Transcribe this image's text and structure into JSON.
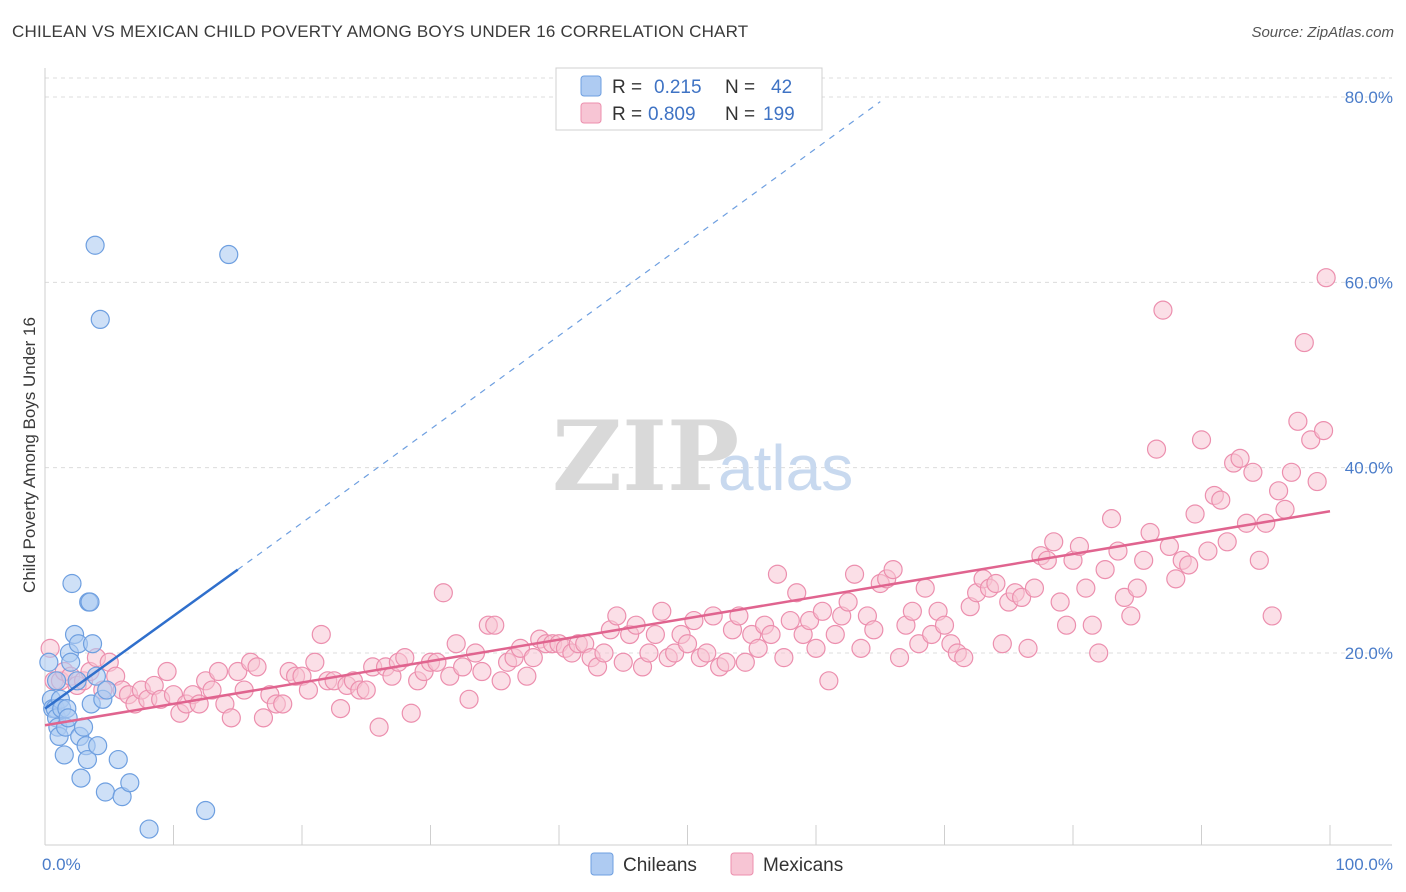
{
  "title": "CHILEAN VS MEXICAN CHILD POVERTY AMONG BOYS UNDER 16 CORRELATION CHART",
  "source": "Source: ZipAtlas.com",
  "watermark": {
    "zip": "ZIP",
    "atlas": "atlas"
  },
  "colors": {
    "chileans_fill": "#aecbf2",
    "chileans_stroke": "#6e9fe0",
    "chileans_line": "#2f6fcc",
    "mexicans_fill": "#f7c5d4",
    "mexicans_stroke": "#ec8fae",
    "mexicans_line": "#e0648f",
    "grid": "#dcdcdc",
    "tick_label": "#4a7cc9"
  },
  "legend": {
    "rows": [
      {
        "r_label": "R =",
        "r_value": "0.215",
        "n_label": "N =",
        "n_value": "42"
      },
      {
        "r_label": "R =",
        "r_value": "0.809",
        "n_label": "N =",
        "n_value": "199"
      }
    ]
  },
  "chart_data": {
    "type": "scatter",
    "title": "CHILEAN VS MEXICAN CHILD POVERTY AMONG BOYS UNDER 16 CORRELATION CHART",
    "xlabel": "",
    "ylabel": "Child Poverty Among Boys Under 16",
    "xlim": [
      0,
      100
    ],
    "ylim": [
      0,
      80
    ],
    "x_tick_labels": [
      "0.0%",
      "100.0%"
    ],
    "y_ticks": [
      20,
      40,
      60,
      80
    ],
    "y_tick_labels": [
      "20.0%",
      "40.0%",
      "60.0%",
      "80.0%"
    ],
    "grid": true,
    "legend_position": "top-center",
    "series": [
      {
        "name": "Chileans",
        "r": 0.215,
        "n": 42,
        "trend": {
          "x0": 0,
          "y0": 14.0,
          "x1": 15,
          "y1": 29.0,
          "dashed_to": {
            "x": 65,
            "y": 79.5
          }
        },
        "points": [
          [
            0.3,
            19
          ],
          [
            0.5,
            15
          ],
          [
            0.6,
            14
          ],
          [
            0.8,
            14
          ],
          [
            0.9,
            13
          ],
          [
            1.0,
            12
          ],
          [
            1.1,
            11
          ],
          [
            1.2,
            15
          ],
          [
            1.3,
            14
          ],
          [
            1.5,
            9
          ],
          [
            1.6,
            12
          ],
          [
            1.7,
            14
          ],
          [
            1.8,
            13
          ],
          [
            1.9,
            20
          ],
          [
            2.0,
            19
          ],
          [
            2.1,
            27.5
          ],
          [
            2.3,
            22
          ],
          [
            2.5,
            17
          ],
          [
            2.6,
            21
          ],
          [
            2.7,
            11
          ],
          [
            2.8,
            6.5
          ],
          [
            3.0,
            12
          ],
          [
            3.2,
            10
          ],
          [
            3.3,
            8.5
          ],
          [
            3.4,
            25.5
          ],
          [
            3.5,
            25.5
          ],
          [
            3.6,
            14.5
          ],
          [
            3.7,
            21
          ],
          [
            3.9,
            64
          ],
          [
            4.0,
            17.5
          ],
          [
            4.1,
            10
          ],
          [
            4.3,
            56
          ],
          [
            4.5,
            15
          ],
          [
            4.7,
            5
          ],
          [
            4.8,
            16
          ],
          [
            5.7,
            8.5
          ],
          [
            6.0,
            4.5
          ],
          [
            6.6,
            6
          ],
          [
            8.1,
            1
          ],
          [
            12.5,
            3
          ],
          [
            14.3,
            63
          ],
          [
            0.9,
            17
          ]
        ]
      },
      {
        "name": "Mexicans",
        "r": 0.809,
        "n": 199,
        "trend": {
          "x0": 0,
          "y0": 12.2,
          "x1": 100,
          "y1": 35.3
        },
        "points": [
          [
            0.4,
            20.5
          ],
          [
            0.7,
            17
          ],
          [
            1.2,
            17
          ],
          [
            1.5,
            18
          ],
          [
            2.0,
            17.5
          ],
          [
            2.5,
            16.5
          ],
          [
            3.0,
            17
          ],
          [
            3.5,
            18
          ],
          [
            4.0,
            19.5
          ],
          [
            4.5,
            16
          ],
          [
            5.0,
            19
          ],
          [
            5.5,
            17.5
          ],
          [
            6.0,
            16
          ],
          [
            6.5,
            15.5
          ],
          [
            7.0,
            14.5
          ],
          [
            7.5,
            16
          ],
          [
            8.0,
            15
          ],
          [
            8.5,
            16.5
          ],
          [
            9.0,
            15
          ],
          [
            9.5,
            18
          ],
          [
            10.0,
            15.5
          ],
          [
            10.5,
            13.5
          ],
          [
            11.0,
            14.5
          ],
          [
            11.5,
            15.5
          ],
          [
            12.0,
            14.5
          ],
          [
            12.5,
            17
          ],
          [
            13.0,
            16
          ],
          [
            13.5,
            18
          ],
          [
            14.0,
            14.5
          ],
          [
            14.5,
            13
          ],
          [
            15.0,
            18
          ],
          [
            15.5,
            16
          ],
          [
            16.0,
            19
          ],
          [
            16.5,
            18.5
          ],
          [
            17.0,
            13
          ],
          [
            17.5,
            15.5
          ],
          [
            18.0,
            14.5
          ],
          [
            18.5,
            14.5
          ],
          [
            19.0,
            18
          ],
          [
            19.5,
            17.5
          ],
          [
            20.0,
            17.5
          ],
          [
            20.5,
            16
          ],
          [
            21.0,
            19
          ],
          [
            21.5,
            22
          ],
          [
            22.0,
            17
          ],
          [
            22.5,
            17
          ],
          [
            23.0,
            14
          ],
          [
            23.5,
            16.5
          ],
          [
            24.0,
            17
          ],
          [
            24.5,
            16
          ],
          [
            25.0,
            16
          ],
          [
            25.5,
            18.5
          ],
          [
            26.0,
            12
          ],
          [
            26.5,
            18.5
          ],
          [
            27.0,
            17.5
          ],
          [
            27.5,
            19
          ],
          [
            28.0,
            19.5
          ],
          [
            28.5,
            13.5
          ],
          [
            29.0,
            17
          ],
          [
            29.5,
            18
          ],
          [
            30.0,
            19
          ],
          [
            30.5,
            19
          ],
          [
            31.0,
            26.5
          ],
          [
            31.5,
            17.5
          ],
          [
            32.0,
            21
          ],
          [
            32.5,
            18.5
          ],
          [
            33.0,
            15
          ],
          [
            33.5,
            20
          ],
          [
            34.0,
            18
          ],
          [
            34.5,
            23
          ],
          [
            35.0,
            23
          ],
          [
            35.5,
            17
          ],
          [
            36.0,
            19
          ],
          [
            36.5,
            19.5
          ],
          [
            37.0,
            20.5
          ],
          [
            37.5,
            17.5
          ],
          [
            38.0,
            19.5
          ],
          [
            38.5,
            21.5
          ],
          [
            39.0,
            21
          ],
          [
            39.5,
            21
          ],
          [
            40.0,
            21
          ],
          [
            40.5,
            20.5
          ],
          [
            41.0,
            20
          ],
          [
            41.5,
            21
          ],
          [
            42.0,
            21
          ],
          [
            42.5,
            19.5
          ],
          [
            43.0,
            18.5
          ],
          [
            43.5,
            20
          ],
          [
            44.0,
            22.5
          ],
          [
            44.5,
            24
          ],
          [
            45.0,
            19
          ],
          [
            45.5,
            22
          ],
          [
            46.0,
            23
          ],
          [
            46.5,
            18.5
          ],
          [
            47.0,
            20
          ],
          [
            47.5,
            22
          ],
          [
            48.0,
            24.5
          ],
          [
            48.5,
            19.5
          ],
          [
            49.0,
            20
          ],
          [
            49.5,
            22
          ],
          [
            50.0,
            21
          ],
          [
            50.5,
            23.5
          ],
          [
            51.0,
            19.5
          ],
          [
            51.5,
            20
          ],
          [
            52.0,
            24
          ],
          [
            52.5,
            18.5
          ],
          [
            53.0,
            19
          ],
          [
            53.5,
            22.5
          ],
          [
            54.0,
            24
          ],
          [
            54.5,
            19
          ],
          [
            55.0,
            22
          ],
          [
            55.5,
            20.5
          ],
          [
            56.0,
            23
          ],
          [
            56.5,
            22
          ],
          [
            57.0,
            28.5
          ],
          [
            57.5,
            19.5
          ],
          [
            58.0,
            23.5
          ],
          [
            58.5,
            26.5
          ],
          [
            59.0,
            22
          ],
          [
            59.5,
            23.5
          ],
          [
            60.0,
            20.5
          ],
          [
            60.5,
            24.5
          ],
          [
            61.0,
            17
          ],
          [
            61.5,
            22
          ],
          [
            62.0,
            24
          ],
          [
            62.5,
            25.5
          ],
          [
            63.0,
            28.5
          ],
          [
            63.5,
            20.5
          ],
          [
            64.0,
            24
          ],
          [
            64.5,
            22.5
          ],
          [
            65.0,
            27.5
          ],
          [
            65.5,
            28
          ],
          [
            66.0,
            29
          ],
          [
            66.5,
            19.5
          ],
          [
            67.0,
            23
          ],
          [
            67.5,
            24.5
          ],
          [
            68.0,
            21
          ],
          [
            68.5,
            27
          ],
          [
            69.0,
            22
          ],
          [
            69.5,
            24.5
          ],
          [
            70.0,
            23
          ],
          [
            70.5,
            21
          ],
          [
            71.0,
            20
          ],
          [
            71.5,
            19.5
          ],
          [
            72.0,
            25
          ],
          [
            72.5,
            26.5
          ],
          [
            73.0,
            28
          ],
          [
            73.5,
            27
          ],
          [
            74.0,
            27.5
          ],
          [
            74.5,
            21
          ],
          [
            75.0,
            25.5
          ],
          [
            75.5,
            26.5
          ],
          [
            76.0,
            26
          ],
          [
            76.5,
            20.5
          ],
          [
            77.0,
            27
          ],
          [
            77.5,
            30.5
          ],
          [
            78.0,
            30
          ],
          [
            78.5,
            32
          ],
          [
            79.0,
            25.5
          ],
          [
            79.5,
            23
          ],
          [
            80.0,
            30
          ],
          [
            80.5,
            31.5
          ],
          [
            81.0,
            27
          ],
          [
            81.5,
            23
          ],
          [
            82.0,
            20
          ],
          [
            82.5,
            29
          ],
          [
            83.0,
            34.5
          ],
          [
            83.5,
            31
          ],
          [
            84.0,
            26
          ],
          [
            84.5,
            24
          ],
          [
            85.0,
            27
          ],
          [
            85.5,
            30
          ],
          [
            86.0,
            33
          ],
          [
            86.5,
            42
          ],
          [
            87.0,
            57
          ],
          [
            87.5,
            31.5
          ],
          [
            88.0,
            28
          ],
          [
            88.5,
            30
          ],
          [
            89.0,
            29.5
          ],
          [
            89.5,
            35
          ],
          [
            90.0,
            43
          ],
          [
            90.5,
            31
          ],
          [
            91.0,
            37
          ],
          [
            91.5,
            36.5
          ],
          [
            92.0,
            32
          ],
          [
            92.5,
            40.5
          ],
          [
            93.0,
            41
          ],
          [
            93.5,
            34
          ],
          [
            94.0,
            39.5
          ],
          [
            94.5,
            30
          ],
          [
            95.0,
            34
          ],
          [
            95.5,
            24
          ],
          [
            96.0,
            37.5
          ],
          [
            96.5,
            35.5
          ],
          [
            97.0,
            39.5
          ],
          [
            97.5,
            45
          ],
          [
            98.0,
            53.5
          ],
          [
            98.5,
            43
          ],
          [
            99.0,
            38.5
          ],
          [
            99.5,
            44
          ],
          [
            99.7,
            60.5
          ]
        ]
      }
    ]
  },
  "bottom_legend": {
    "chileans": "Chileans",
    "mexicans": "Mexicans"
  }
}
